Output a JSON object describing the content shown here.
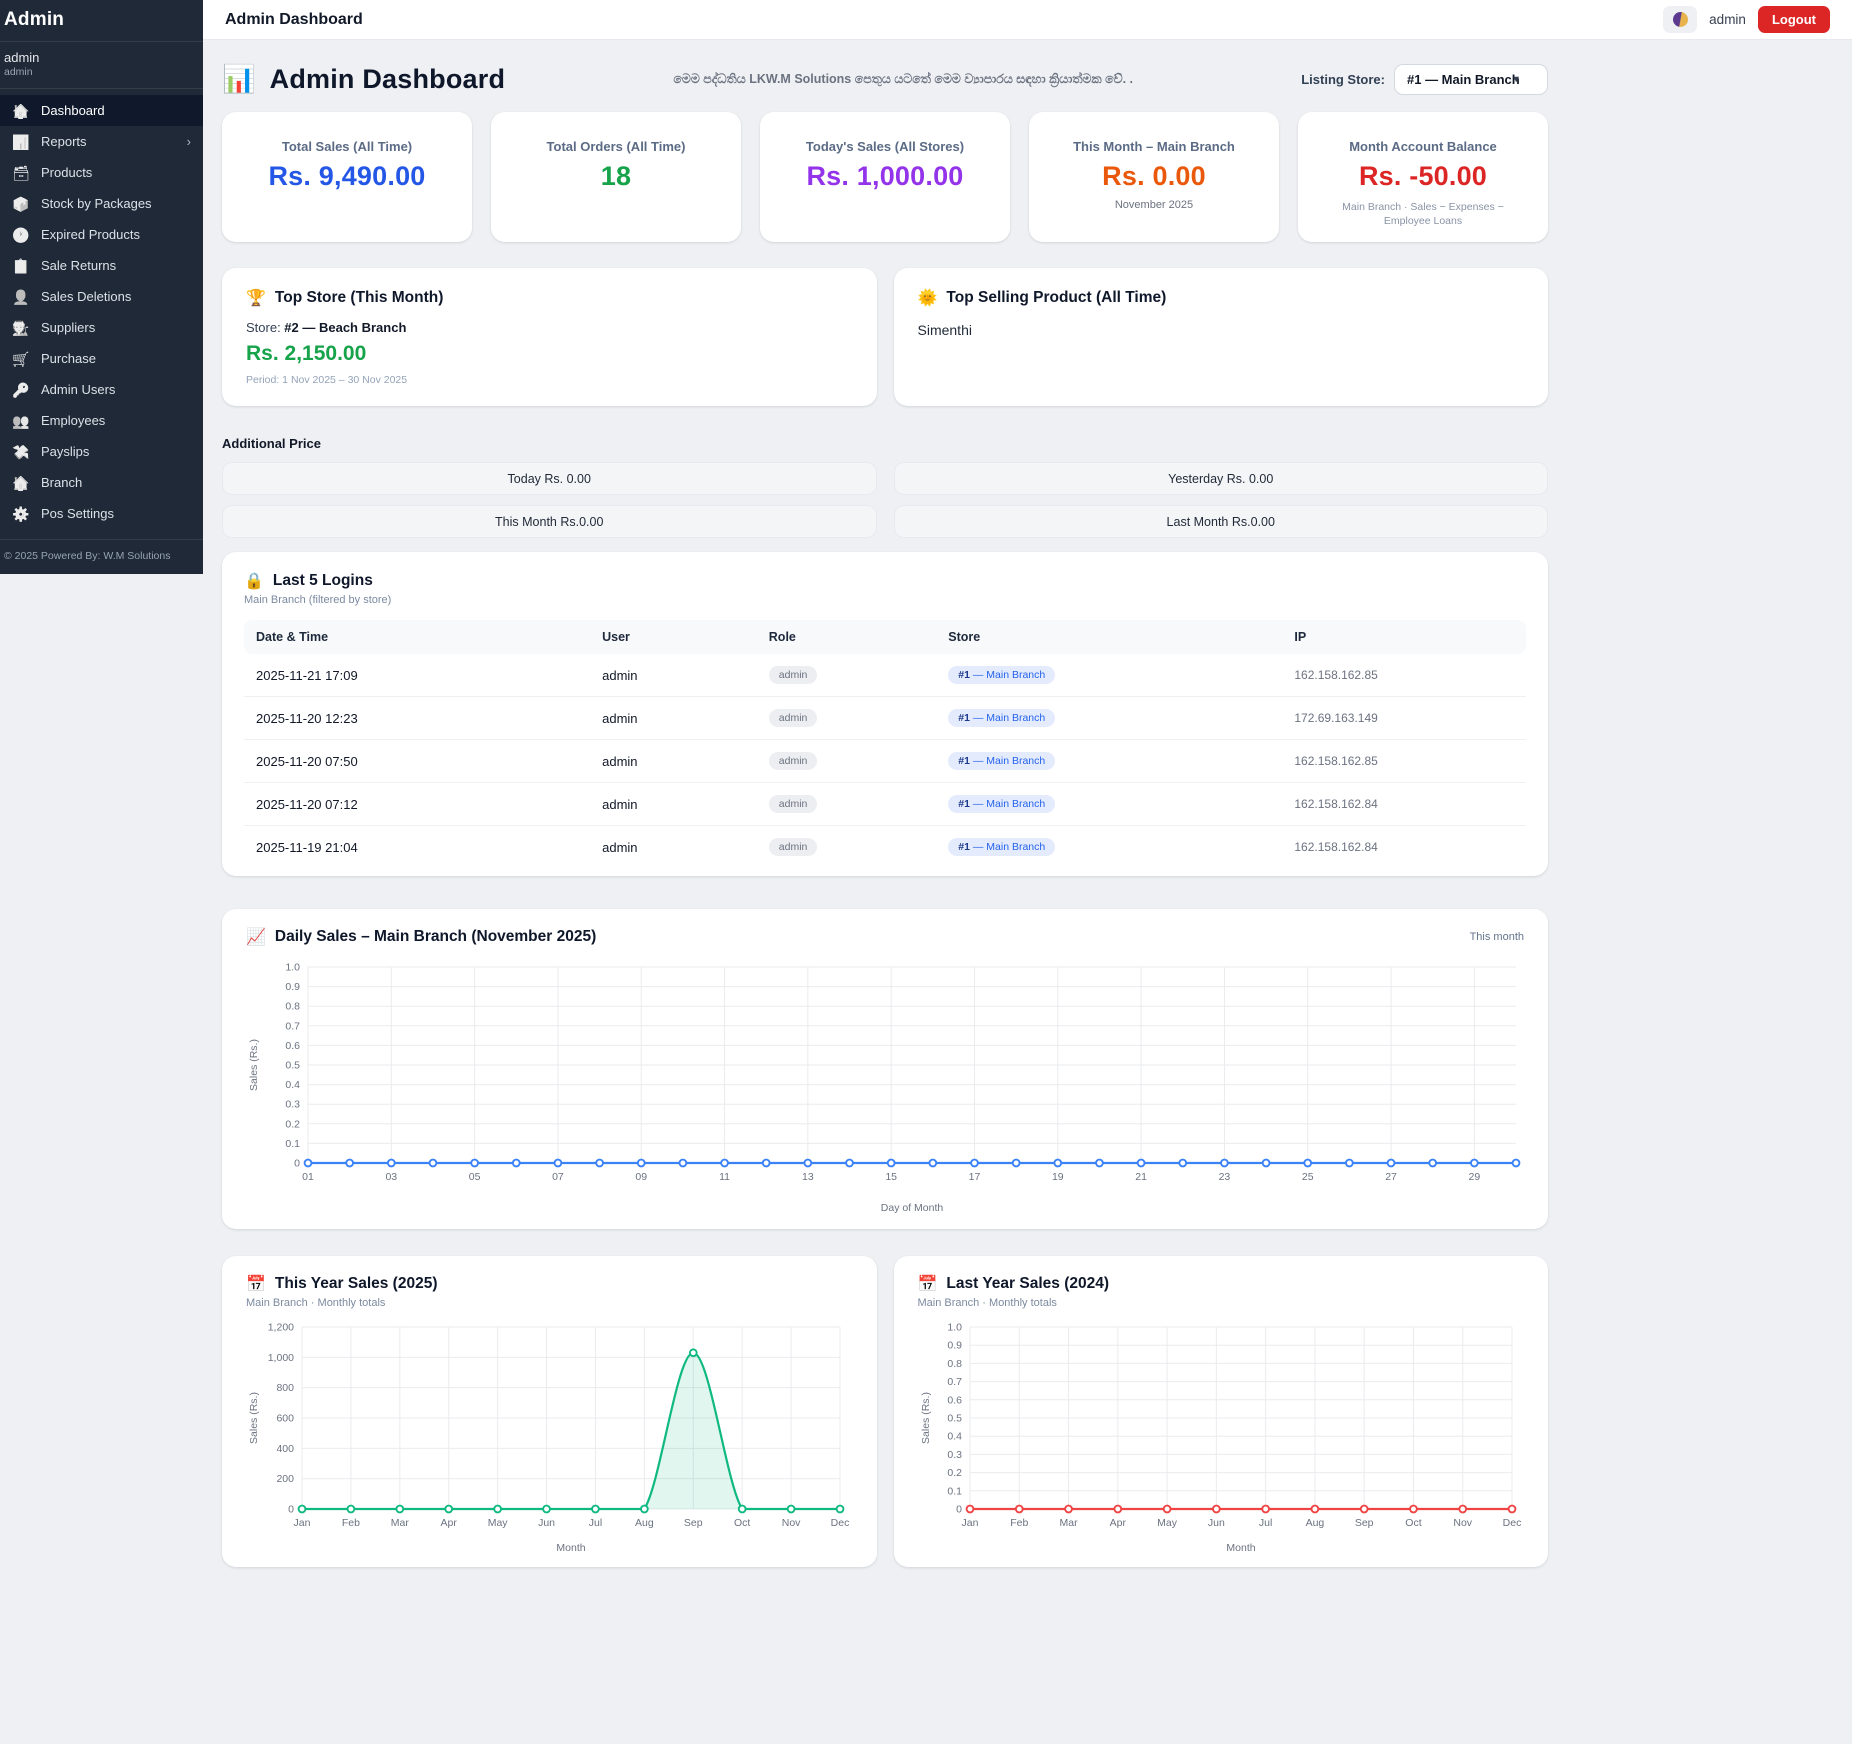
{
  "sidebar": {
    "brand": "Admin",
    "user_name": "admin",
    "user_role": "admin",
    "items": [
      {
        "label": "Dashboard",
        "icon": "home-icon",
        "glyph": "🏠",
        "active": true
      },
      {
        "label": "Reports",
        "icon": "bar-chart-icon",
        "glyph": "📊",
        "chevron": "›"
      },
      {
        "label": "Products",
        "icon": "grid-icon",
        "glyph": "🗃"
      },
      {
        "label": "Stock by Packages",
        "icon": "package-list-icon",
        "glyph": "📦"
      },
      {
        "label": "Expired Products",
        "icon": "clock-x-icon",
        "glyph": "🕐"
      },
      {
        "label": "Sale Returns",
        "icon": "clipboard-return-icon",
        "glyph": "📋"
      },
      {
        "label": "Sales Deletions",
        "icon": "person-delete-icon",
        "glyph": "👤"
      },
      {
        "label": "Suppliers",
        "icon": "suppliers-icon",
        "glyph": "🧑‍🏭"
      },
      {
        "label": "Purchase",
        "icon": "cart-icon",
        "glyph": "🛒"
      },
      {
        "label": "Admin Users",
        "icon": "person-key-icon",
        "glyph": "🔑"
      },
      {
        "label": "Employees",
        "icon": "people-group-icon",
        "glyph": "👥"
      },
      {
        "label": "Payslips",
        "icon": "money-hand-icon",
        "glyph": "💸"
      },
      {
        "label": "Branch",
        "icon": "branch-network-icon",
        "glyph": "🏠"
      },
      {
        "label": "Pos Settings",
        "icon": "gear-icon",
        "glyph": "⚙️"
      }
    ],
    "footer": "© 2025 Powered By: W.M Solutions"
  },
  "header": {
    "title": "Admin Dashboard",
    "user": "admin",
    "logout_label": "Logout",
    "theme_icon": "theme-toggle-moon-icon"
  },
  "page": {
    "icon": "bar-chart-emoji-icon",
    "icon_glyph": "📊",
    "title": "Admin Dashboard",
    "subtitle": "මෙම පද්ධතිය LKW.M Solutions පෙතුය යටතේ මෙම ව්‍යාපාරය සඳහා ක්‍රියාත්මක වේ. .",
    "listing_store_label": "Listing Store:",
    "listing_store_value": "#1 — Main Branch"
  },
  "stats": [
    {
      "label": "Total Sales (All Time)",
      "value": "Rs. 9,490.00",
      "color": "#2457e6"
    },
    {
      "label": "Total Orders (All Time)",
      "value": "18",
      "color": "#16a34a"
    },
    {
      "label": "Today's Sales (All Stores)",
      "value": "Rs. 1,000.00",
      "color": "#9333ea"
    },
    {
      "label": "This Month – Main Branch",
      "value": "Rs. 0.00",
      "color": "#ea580c",
      "note": "November 2025"
    },
    {
      "label": "Month Account Balance",
      "value": "Rs. -50.00",
      "color": "#dc2626",
      "note2": "Main Branch · Sales − Expenses − Employee Loans"
    }
  ],
  "top_store": {
    "icon_glyph": "🏆",
    "title": "Top Store (This Month)",
    "store_label": "Store: ",
    "store_value": "#2 — Beach Branch",
    "amount": "Rs. 2,150.00",
    "period": "Period: 1 Nov 2025 – 30 Nov 2025"
  },
  "top_product": {
    "icon_glyph": "🌞",
    "title": "Top Selling Product (All Time)",
    "product": "Simenthi"
  },
  "additional_price": {
    "title": "Additional Price",
    "boxes": [
      "Today Rs. 0.00",
      "Yesterday Rs. 0.00",
      "This Month Rs.0.00",
      "Last Month Rs.0.00"
    ]
  },
  "logins": {
    "icon_glyph": "🔒",
    "title": "Last 5 Logins",
    "subtitle": "Main Branch (filtered by store)",
    "columns": [
      "Date & Time",
      "User",
      "Role",
      "Store",
      "IP"
    ],
    "rows": [
      {
        "datetime": "2025-11-21 17:09",
        "user": "admin",
        "role": "admin",
        "store_num": "#1",
        "store_name": " — Main Branch",
        "ip": "162.158.162.85"
      },
      {
        "datetime": "2025-11-20 12:23",
        "user": "admin",
        "role": "admin",
        "store_num": "#1",
        "store_name": " — Main Branch",
        "ip": "172.69.163.149"
      },
      {
        "datetime": "2025-11-20 07:50",
        "user": "admin",
        "role": "admin",
        "store_num": "#1",
        "store_name": " — Main Branch",
        "ip": "162.158.162.85"
      },
      {
        "datetime": "2025-11-20 07:12",
        "user": "admin",
        "role": "admin",
        "store_num": "#1",
        "store_name": " — Main Branch",
        "ip": "162.158.162.84"
      },
      {
        "datetime": "2025-11-19 21:04",
        "user": "admin",
        "role": "admin",
        "store_num": "#1",
        "store_name": " — Main Branch",
        "ip": "162.158.162.84"
      }
    ]
  },
  "chart_data": [
    {
      "type": "line",
      "title": "Daily Sales – Main Branch (November 2025)",
      "icon_glyph": "📈",
      "badge": "This month",
      "xlabel": "Day of Month",
      "ylabel": "Sales (Rs.)",
      "ylim": [
        0,
        1.0
      ],
      "yticks": [
        "0",
        "0.1",
        "0.2",
        "0.3",
        "0.4",
        "0.5",
        "0.6",
        "0.7",
        "0.8",
        "0.9",
        "1.0"
      ],
      "categories": [
        "01",
        "02",
        "03",
        "04",
        "05",
        "06",
        "07",
        "08",
        "09",
        "10",
        "11",
        "12",
        "13",
        "14",
        "15",
        "16",
        "17",
        "18",
        "19",
        "20",
        "21",
        "22",
        "23",
        "24",
        "25",
        "26",
        "27",
        "28",
        "29",
        "30"
      ],
      "xticks": [
        "01",
        "03",
        "05",
        "07",
        "09",
        "11",
        "13",
        "15",
        "17",
        "19",
        "21",
        "23",
        "25",
        "27",
        "29"
      ],
      "values": [
        0,
        0,
        0,
        0,
        0,
        0,
        0,
        0,
        0,
        0,
        0,
        0,
        0,
        0,
        0,
        0,
        0,
        0,
        0,
        0,
        0,
        0,
        0,
        0,
        0,
        0,
        0,
        0,
        0,
        0
      ],
      "color": "#3b82f6",
      "grid": true,
      "legend": "none"
    },
    {
      "type": "area",
      "title": "This Year Sales (2025)",
      "icon_glyph": "📅",
      "subtitle": "Main Branch · Monthly totals",
      "xlabel": "Month",
      "ylabel": "Sales (Rs.)",
      "ylim": [
        0,
        1200
      ],
      "yticks": [
        "0",
        "200",
        "400",
        "600",
        "800",
        "1,000",
        "1,200"
      ],
      "categories": [
        "Jan",
        "Feb",
        "Mar",
        "Apr",
        "May",
        "Jun",
        "Jul",
        "Aug",
        "Sep",
        "Oct",
        "Nov",
        "Dec"
      ],
      "xticks": [
        "Jan",
        "Feb",
        "Mar",
        "Apr",
        "May",
        "Jun",
        "Jul",
        "Aug",
        "Sep",
        "Oct",
        "Nov",
        "Dec"
      ],
      "values": [
        0,
        0,
        0,
        0,
        0,
        0,
        0,
        0,
        1030,
        0,
        0,
        0
      ],
      "color": "#10b981",
      "fill": "rgba(16,185,129,0.13)",
      "smooth": true,
      "grid": true,
      "legend": "none"
    },
    {
      "type": "line",
      "title": "Last Year Sales (2024)",
      "icon_glyph": "📅",
      "subtitle": "Main Branch · Monthly totals",
      "xlabel": "Month",
      "ylabel": "Sales (Rs.)",
      "ylim": [
        0,
        1.0
      ],
      "yticks": [
        "0",
        "0.1",
        "0.2",
        "0.3",
        "0.4",
        "0.5",
        "0.6",
        "0.7",
        "0.8",
        "0.9",
        "1.0"
      ],
      "categories": [
        "Jan",
        "Feb",
        "Mar",
        "Apr",
        "May",
        "Jun",
        "Jul",
        "Aug",
        "Sep",
        "Oct",
        "Nov",
        "Dec"
      ],
      "xticks": [
        "Jan",
        "Feb",
        "Mar",
        "Apr",
        "May",
        "Jun",
        "Jul",
        "Aug",
        "Sep",
        "Oct",
        "Nov",
        "Dec"
      ],
      "values": [
        0,
        0,
        0,
        0,
        0,
        0,
        0,
        0,
        0,
        0,
        0,
        0
      ],
      "color": "#ef4444",
      "grid": true,
      "legend": "none"
    }
  ]
}
